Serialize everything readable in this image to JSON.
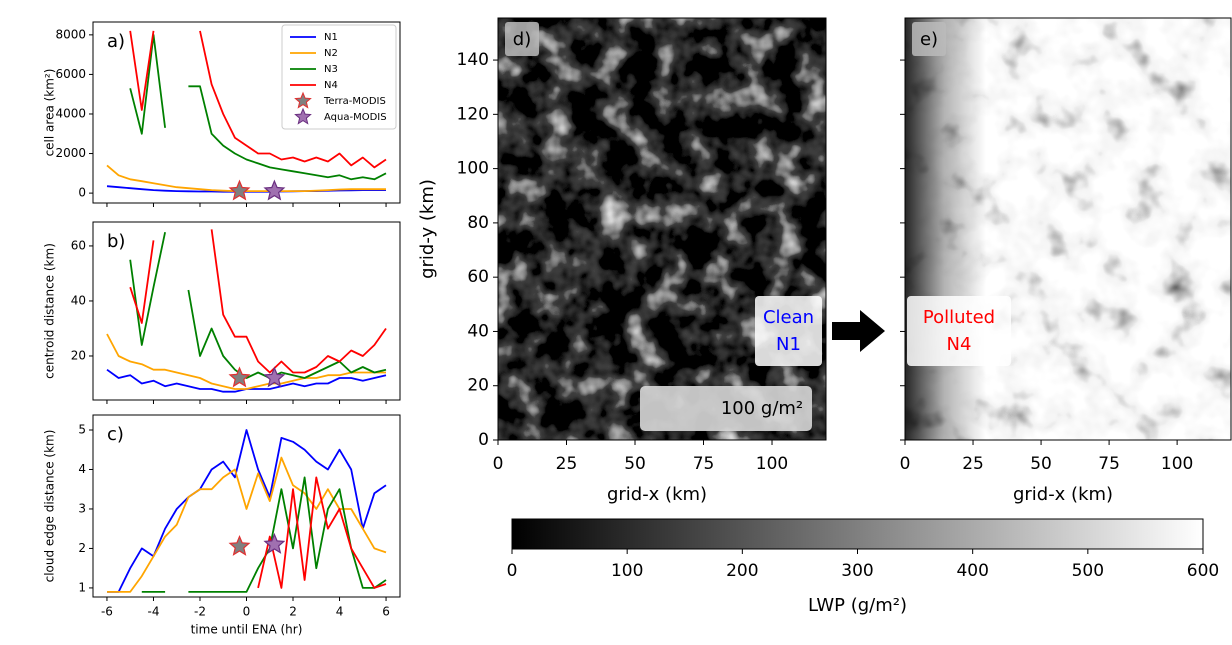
{
  "chart_data": [
    {
      "type": "line",
      "label": "a)",
      "ylabel": "cell area (km²)",
      "legend": "upper right",
      "x": [
        -6,
        -5.5,
        -5,
        -4.5,
        -4,
        -3.5,
        -3,
        -2.5,
        -2,
        -1.5,
        -1,
        -0.5,
        0,
        0.5,
        1,
        1.5,
        2,
        2.5,
        3,
        3.5,
        4,
        4.5,
        5,
        5.5,
        6
      ],
      "xlim": [
        -6.6,
        6.6
      ],
      "xticks": [
        -6,
        -4,
        -2,
        0,
        2,
        4,
        6
      ],
      "xtick_labels": false,
      "ylim": [
        -500,
        8650
      ],
      "yticks": [
        0,
        2000,
        4000,
        6000,
        8000
      ],
      "series": [
        {
          "name": "N1",
          "color": "#0000ff",
          "values": [
            350,
            300,
            250,
            200,
            150,
            120,
            100,
            90,
            80,
            80,
            70,
            70,
            70,
            70,
            70,
            80,
            90,
            100,
            100,
            120,
            130,
            140,
            150,
            150,
            150
          ]
        },
        {
          "name": "N2",
          "color": "#ffa500",
          "values": [
            1400,
            900,
            700,
            600,
            500,
            400,
            300,
            250,
            200,
            150,
            120,
            100,
            100,
            100,
            100,
            100,
            100,
            100,
            120,
            150,
            180,
            200,
            200,
            200,
            200
          ]
        },
        {
          "name": "N3",
          "color": "#008000",
          "values": [
            null,
            null,
            5300,
            3000,
            8000,
            3300,
            null,
            5400,
            5400,
            3000,
            2400,
            2000,
            1700,
            1500,
            1300,
            1200,
            1100,
            1000,
            900,
            800,
            900,
            700,
            800,
            700,
            1000
          ]
        },
        {
          "name": "N4",
          "color": "#ff0000",
          "values": [
            null,
            null,
            8200,
            4200,
            8200,
            null,
            null,
            null,
            8200,
            5500,
            4000,
            2800,
            2400,
            2000,
            2000,
            1700,
            1800,
            1600,
            1800,
            1600,
            2000,
            1400,
            1800,
            1300,
            1700
          ]
        }
      ],
      "points": [
        {
          "name": "Terra-MODIS",
          "x": -0.3,
          "y": 100,
          "color": "#808080",
          "edgecolor": "#e03030"
        },
        {
          "name": "Aqua-MODIS",
          "x": 1.2,
          "y": 100,
          "color": "#a070b0",
          "edgecolor": "#6a2f80"
        }
      ]
    },
    {
      "type": "line",
      "label": "b)",
      "ylabel": "centroid distance (km)",
      "x": [
        -6,
        -5.5,
        -5,
        -4.5,
        -4,
        -3.5,
        -3,
        -2.5,
        -2,
        -1.5,
        -1,
        -0.5,
        0,
        0.5,
        1,
        1.5,
        2,
        2.5,
        3,
        3.5,
        4,
        4.5,
        5,
        5.5,
        6
      ],
      "xlim": [
        -6.6,
        6.6
      ],
      "xticks": [
        -6,
        -4,
        -2,
        0,
        2,
        4,
        6
      ],
      "xtick_labels": false,
      "ylim": [
        4,
        68.7
      ],
      "yticks": [
        20,
        40,
        60
      ],
      "series": [
        {
          "color": "#0000ff",
          "values": [
            15,
            12,
            13,
            10,
            11,
            9,
            10,
            9,
            8,
            8,
            7,
            7,
            8,
            8,
            8,
            9,
            10,
            9,
            10,
            10,
            12,
            12,
            11,
            12,
            13
          ]
        },
        {
          "color": "#ffa500",
          "values": [
            28,
            20,
            18,
            17,
            15,
            15,
            14,
            13,
            12,
            10,
            9,
            8,
            8,
            9,
            10,
            10,
            11,
            12,
            12,
            13,
            13,
            14,
            14,
            14,
            14
          ]
        },
        {
          "color": "#008000",
          "values": [
            null,
            null,
            55,
            24,
            45,
            65,
            null,
            44,
            20,
            30,
            20,
            15,
            12,
            14,
            12,
            14,
            13,
            12,
            14,
            16,
            18,
            14,
            16,
            14,
            15
          ]
        },
        {
          "color": "#ff0000",
          "values": [
            null,
            null,
            45,
            32,
            62,
            null,
            null,
            null,
            null,
            66,
            35,
            27,
            27,
            18,
            14,
            18,
            14,
            14,
            16,
            20,
            18,
            22,
            20,
            24,
            30
          ]
        }
      ],
      "points": [
        {
          "x": -0.3,
          "y": 12,
          "color": "#808080",
          "edgecolor": "#e03030"
        },
        {
          "x": 1.2,
          "y": 12,
          "color": "#a070b0",
          "edgecolor": "#6a2f80"
        }
      ]
    },
    {
      "type": "line",
      "label": "c)",
      "ylabel": "cloud edge distance (km)",
      "xlabel": "time until ENA (hr)",
      "x": [
        -6,
        -5.5,
        -5,
        -4.5,
        -4,
        -3.5,
        -3,
        -2.5,
        -2,
        -1.5,
        -1,
        -0.5,
        0,
        0.5,
        1,
        1.5,
        2,
        2.5,
        3,
        3.5,
        4,
        4.5,
        5,
        5.5,
        6
      ],
      "xlim": [
        -6.6,
        6.6
      ],
      "xticks": [
        -6,
        -4,
        -2,
        0,
        2,
        4,
        6
      ],
      "ylim": [
        0.77,
        5.38
      ],
      "yticks": [
        1,
        2,
        3,
        4,
        5
      ],
      "series": [
        {
          "color": "#0000ff",
          "values": [
            0.9,
            0.9,
            1.5,
            2.0,
            1.8,
            2.5,
            3.0,
            3.3,
            3.5,
            4.0,
            4.2,
            3.8,
            5.0,
            4.0,
            3.3,
            4.8,
            4.7,
            4.5,
            4.2,
            4.0,
            4.5,
            4.0,
            2.5,
            3.4,
            3.6
          ]
        },
        {
          "color": "#ffa500",
          "values": [
            0.9,
            0.9,
            0.9,
            1.3,
            1.8,
            2.3,
            2.6,
            3.3,
            3.5,
            3.5,
            3.8,
            4.0,
            3.0,
            3.9,
            3.2,
            4.3,
            3.6,
            3.4,
            3.0,
            3.5,
            3.0,
            3.0,
            2.5,
            2.0,
            1.9
          ]
        },
        {
          "color": "#008000",
          "values": [
            null,
            null,
            null,
            0.9,
            0.9,
            0.9,
            null,
            0.9,
            0.9,
            0.9,
            0.9,
            0.9,
            0.9,
            1.5,
            2.0,
            3.5,
            2.0,
            3.8,
            1.5,
            3.0,
            3.5,
            2.0,
            1.0,
            1.0,
            1.2
          ]
        },
        {
          "color": "#ff0000",
          "values": [
            null,
            null,
            null,
            null,
            null,
            null,
            null,
            null,
            null,
            null,
            null,
            null,
            null,
            1.0,
            2.3,
            1.0,
            3.5,
            1.2,
            3.8,
            2.5,
            3.0,
            2.0,
            1.5,
            1.0,
            1.1
          ]
        }
      ],
      "points": [
        {
          "x": -0.3,
          "y": 2.05,
          "color": "#808080",
          "edgecolor": "#e03030"
        },
        {
          "x": 1.2,
          "y": 2.1,
          "color": "#a070b0",
          "edgecolor": "#6a2f80"
        }
      ]
    },
    {
      "type": "heatmap",
      "label": "d)",
      "xlabel": "grid-x (km)",
      "ylabel": "grid-y (km)",
      "xlim": [
        0,
        119.7
      ],
      "xticks": [
        0,
        25,
        50,
        75,
        100
      ],
      "ylim": [
        0,
        155.5
      ],
      "yticks": [
        0,
        20,
        40,
        60,
        80,
        100,
        120,
        140
      ],
      "box_text": [
        "Clean",
        "N1"
      ],
      "box_color": "#0000ff",
      "scale_label": "100 g/m²"
    },
    {
      "type": "heatmap",
      "label": "e)",
      "xlabel": "grid-x (km)",
      "xlim": [
        0,
        119.8
      ],
      "xticks": [
        0,
        25,
        50,
        75,
        100
      ],
      "ylim": [
        0,
        155.5
      ],
      "yticks": [
        0,
        20,
        40,
        60,
        80,
        100,
        120,
        140
      ],
      "ytick_labels": false,
      "box_text": [
        "Polluted",
        "N4"
      ],
      "box_color": "#ff0000"
    },
    {
      "type": "colorbar",
      "xlabel": "LWP (g/m²)",
      "xlim": [
        0,
        600
      ],
      "xticks": [
        0,
        100,
        200,
        300,
        400,
        500,
        600
      ]
    }
  ]
}
